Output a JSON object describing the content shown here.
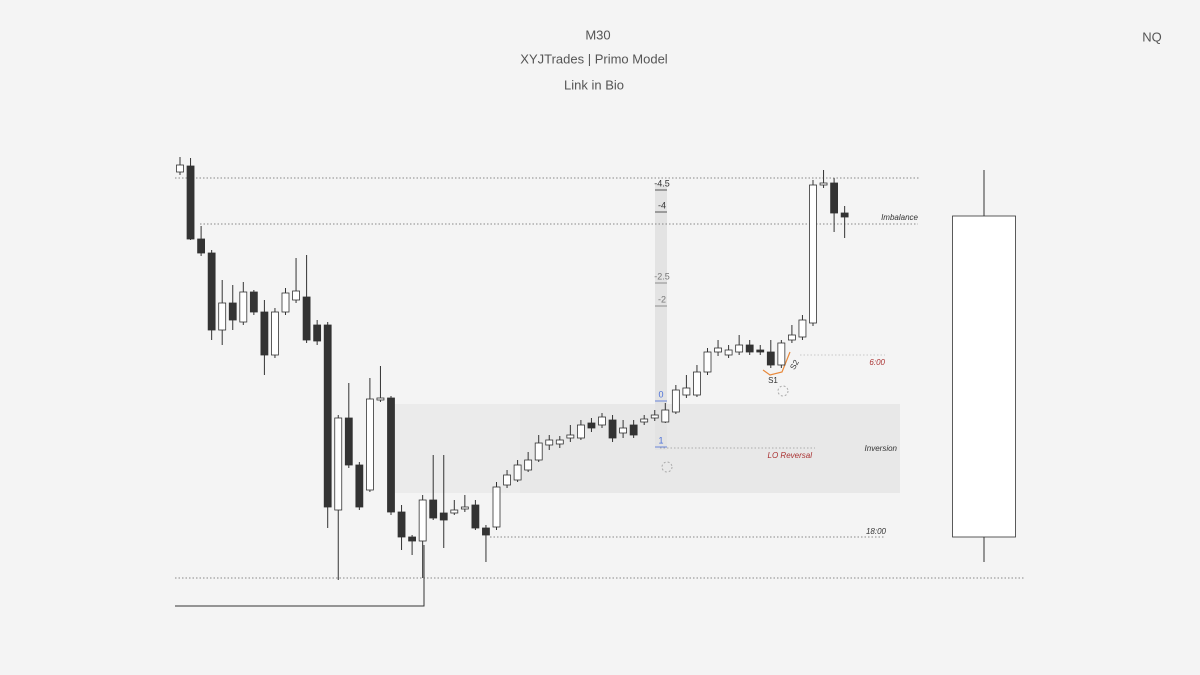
{
  "chart_data": {
    "type": "candlestick",
    "title": "M30",
    "subtitle": "XYJTrades | Primo Model",
    "caption": "Link in Bio",
    "symbol": "NQ",
    "up_color": "#ffffff",
    "down_color": "#333333",
    "ylim": [
      25,
      700
    ],
    "open": [
      528,
      534,
      461,
      447,
      370,
      397,
      378,
      408,
      388,
      345,
      388,
      400,
      403,
      375,
      375,
      190,
      282,
      235,
      210,
      300,
      302,
      188,
      163,
      159,
      200,
      187,
      187,
      191,
      195,
      172,
      173,
      215,
      220,
      230,
      240,
      255,
      256,
      262,
      262,
      277,
      275,
      280,
      267,
      275,
      278,
      282,
      278,
      288,
      305,
      305,
      328,
      348,
      345,
      348,
      355,
      350,
      348,
      335,
      360,
      363,
      377,
      515,
      517,
      487
    ],
    "high": [
      543,
      542,
      474,
      450,
      420,
      415,
      418,
      410,
      400,
      392,
      412,
      442,
      445,
      380,
      378,
      285,
      317,
      238,
      322,
      334,
      304,
      195,
      165,
      205,
      245,
      245,
      200,
      205,
      200,
      175,
      218,
      230,
      240,
      248,
      265,
      265,
      264,
      275,
      280,
      282,
      287,
      285,
      280,
      280,
      285,
      290,
      297,
      315,
      325,
      335,
      352,
      360,
      355,
      365,
      360,
      355,
      360,
      360,
      375,
      385,
      520,
      530,
      522,
      494
    ],
    "low": [
      525,
      460,
      444,
      360,
      355,
      370,
      375,
      385,
      325,
      342,
      385,
      397,
      357,
      355,
      172,
      120,
      232,
      190,
      208,
      298,
      185,
      150,
      145,
      122,
      180,
      152,
      185,
      188,
      170,
      138,
      170,
      212,
      218,
      228,
      238,
      250,
      252,
      258,
      260,
      268,
      272,
      258,
      262,
      262,
      275,
      279,
      277,
      286,
      302,
      303,
      325,
      344,
      342,
      345,
      345,
      345,
      332,
      332,
      357,
      360,
      374,
      512,
      468,
      462
    ],
    "close": [
      535,
      461,
      447,
      370,
      397,
      380,
      408,
      388,
      345,
      388,
      407,
      409,
      360,
      359,
      193,
      282,
      235,
      193,
      301,
      302,
      188,
      163,
      159,
      200,
      182,
      180,
      190,
      193,
      172,
      165,
      213,
      225,
      235,
      240,
      257,
      260,
      260,
      265,
      275,
      272,
      283,
      262,
      272,
      265,
      281,
      285,
      290,
      310,
      312,
      328,
      348,
      352,
      350,
      355,
      348,
      348,
      335,
      357,
      365,
      380,
      515,
      517,
      487,
      483
    ],
    "htf_candle": {
      "open": 163,
      "high": 530,
      "low": 138,
      "close": 484
    },
    "annotations": [
      "Imbalance",
      "6:00",
      "Inversion",
      "LO Reversal",
      "18:00",
      "S1",
      "S2",
      "-4.5",
      "-4",
      "-2.5",
      "-2",
      "0",
      "1"
    ]
  }
}
